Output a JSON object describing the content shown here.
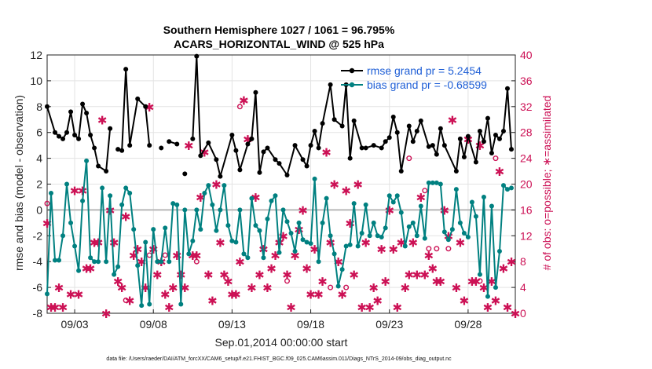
{
  "chart_data": {
    "type": "line",
    "title": "Southern Hemisphere 1027 / 1061 = 96.795%",
    "subtitle": "ACARS_HORIZONTAL_WIND @ 525 hPa",
    "xlabel": "Sep.01,2014 00:00:00 start",
    "ylabel": "rmse and bias (model - observation)",
    "y2label": "# of obs: o=possible; ∗=assimilated",
    "footnote": "data file: /Users/raeder/DAI/ATM_forcXX/CAM6_setup/f.e21.FHIST_BGC.f09_025.CAM6assim.011/Diags_NTrS_2014-09/obs_diag_output.nc",
    "xlim": [
      1.25,
      31.0
    ],
    "ylim": [
      -8,
      12
    ],
    "y2lim": [
      0,
      40
    ],
    "grid": true,
    "legend_position": "top-right",
    "xticks": [
      {
        "value": 3,
        "label": "09/03"
      },
      {
        "value": 8,
        "label": "09/08"
      },
      {
        "value": 13,
        "label": "09/13"
      },
      {
        "value": 18,
        "label": "09/18"
      },
      {
        "value": 23,
        "label": "09/23"
      },
      {
        "value": 28,
        "label": "09/28"
      }
    ],
    "yticks": [
      -8,
      -6,
      -4,
      -2,
      0,
      2,
      4,
      6,
      8,
      10,
      12
    ],
    "y2ticks": [
      0,
      4,
      8,
      12,
      16,
      20,
      24,
      28,
      32,
      36,
      40
    ],
    "colors": {
      "rmse": "#000000",
      "bias": "#008080",
      "obs": "#cc1155",
      "legend_text": "#1f5fd6",
      "zero_line": "#b8b8b8"
    },
    "series": [
      {
        "name": "rmse grand pr = 5.2454",
        "key": "rmse",
        "x": [
          1.25,
          1.75,
          2.0,
          2.25,
          2.5,
          2.75,
          3.0,
          3.25,
          3.5,
          3.75,
          4.0,
          4.25,
          4.5,
          5.0,
          5.25,
          5.5,
          5.75,
          6.0,
          6.25,
          6.5,
          7.0,
          7.5,
          7.75,
          8.0,
          8.5,
          8.75,
          9.0,
          9.5,
          9.75,
          10.0,
          10.25,
          10.5,
          10.75,
          11.0,
          11.5,
          12.0,
          12.25,
          13.0,
          13.25,
          13.5,
          14.0,
          14.25,
          14.5,
          14.75,
          15.0,
          15.25,
          15.75,
          16.0,
          16.5,
          17.0,
          17.5,
          17.75,
          18.0,
          18.25,
          18.5,
          18.75,
          19.25,
          19.5,
          20.0,
          20.25,
          20.5,
          20.75,
          21.25,
          21.5,
          22.0,
          22.5,
          22.75,
          23.0,
          23.25,
          23.5,
          23.75,
          24.25,
          24.5,
          24.75,
          25.0,
          25.5,
          25.75,
          26.0,
          26.25,
          26.5,
          27.25,
          27.5,
          27.75,
          28.0,
          28.5,
          28.75,
          29.0,
          29.25,
          29.5,
          29.75,
          30.0,
          30.25,
          30.5,
          30.75
        ],
        "y": [
          8.0,
          6.0,
          5.7,
          5.5,
          6.0,
          7.6,
          5.8,
          5.5,
          8.2,
          7.5,
          5.8,
          4.8,
          3.4,
          3.0,
          6.3,
          null,
          4.7,
          4.6,
          10.9,
          5.0,
          8.6,
          8.0,
          5.0,
          null,
          4.8,
          null,
          5.3,
          5.1,
          null,
          2.8,
          null,
          5.5,
          11.9,
          4.2,
          5.2,
          3.9,
          2.6,
          5.8,
          4.6,
          3.1,
          5.1,
          5.5,
          9.1,
          2.9,
          4.5,
          4.8,
          3.9,
          3.6,
          2.7,
          5.0,
          3.9,
          3.4,
          5.0,
          6.1,
          4.8,
          6.7,
          9.7,
          7.0,
          6.5,
          9.7,
          4.0,
          6.9,
          4.8,
          4.8,
          5.0,
          4.8,
          5.3,
          5.6,
          7.2,
          6.0,
          3.0,
          6.5,
          5.3,
          6.1,
          6.9,
          4.9,
          5.0,
          4.3,
          6.3,
          5.0,
          3.0,
          5.5,
          4.1,
          5.7,
          3.7,
          6.1,
          5.3,
          7.1,
          4.4,
          5.8,
          5.5,
          6.1,
          9.4,
          4.7
        ]
      },
      {
        "name": "bias grand pr = -0.68599",
        "key": "bias",
        "x": [
          1.25,
          1.5,
          1.75,
          2.0,
          2.25,
          2.5,
          2.75,
          3.0,
          3.25,
          3.5,
          3.75,
          4.0,
          4.25,
          4.5,
          4.75,
          5.0,
          5.25,
          5.5,
          5.75,
          6.0,
          6.25,
          6.5,
          6.75,
          7.0,
          7.25,
          7.5,
          7.75,
          8.0,
          8.25,
          8.5,
          8.75,
          9.0,
          9.25,
          9.5,
          9.75,
          10.0,
          10.25,
          10.5,
          10.75,
          11.0,
          11.25,
          11.5,
          11.75,
          12.0,
          12.25,
          12.5,
          12.75,
          13.0,
          13.25,
          13.5,
          13.75,
          14.0,
          14.25,
          14.5,
          14.75,
          15.0,
          15.25,
          15.5,
          15.75,
          16.0,
          16.25,
          16.5,
          16.75,
          17.0,
          17.25,
          17.5,
          17.75,
          18.0,
          18.25,
          18.5,
          18.75,
          19.0,
          19.25,
          19.5,
          19.75,
          20.0,
          20.25,
          20.5,
          20.75,
          21.0,
          21.25,
          21.5,
          21.75,
          22.0,
          22.25,
          22.5,
          22.75,
          23.0,
          23.25,
          23.5,
          23.75,
          24.0,
          24.25,
          24.5,
          24.75,
          25.0,
          25.25,
          25.5,
          25.75,
          26.0,
          26.25,
          26.5,
          26.75,
          27.0,
          27.25,
          27.5,
          27.75,
          28.0,
          28.25,
          28.5,
          28.75,
          29.0,
          29.25,
          29.5,
          29.75,
          30.0,
          30.25,
          30.5,
          30.75
        ],
        "y": [
          -6.5,
          1.3,
          -3.9,
          -3.9,
          -2.0,
          2.0,
          -1.0,
          -2.8,
          -4.7,
          0.7,
          3.8,
          -3.7,
          -4.0,
          -4.0,
          1.7,
          -4.0,
          1.1,
          -5.0,
          -4.4,
          0.4,
          1.7,
          1.3,
          -1.5,
          -4.3,
          -7.4,
          -2.5,
          -7.3,
          -1.5,
          -4.0,
          -4.0,
          -1.4,
          -4.0,
          0.5,
          0.4,
          -7.3,
          0.0,
          -3.4,
          -2.4,
          0.0,
          -1.5,
          1.3,
          1.9,
          0.4,
          -1.6,
          0.0,
          1.9,
          -1.2,
          -2.4,
          -2.5,
          0.0,
          -3.4,
          -3.7,
          0.9,
          -1.2,
          -1.6,
          -3.7,
          -0.7,
          0.7,
          1.1,
          -3.3,
          0.0,
          -0.9,
          -1.8,
          -3.2,
          -1.0,
          -2.3,
          -2.5,
          -2.6,
          2.4,
          -4.0,
          -1.0,
          0.9,
          -2.0,
          -3.4,
          -5.9,
          -4.6,
          -2.8,
          -2.7,
          0.5,
          -2.8,
          -1.8,
          0.4,
          -2.0,
          -1.0,
          -2.0,
          -2.1,
          -1.4,
          1.1,
          0.6,
          1.1,
          -0.2,
          -2.8,
          -1.3,
          -1.0,
          -2.0,
          0.3,
          -2.2,
          2.1,
          2.1,
          2.1,
          2.0,
          -1.7,
          -2.3,
          -1.5,
          1.6,
          -1.0,
          -1.8,
          -2.1,
          0.6,
          -0.5,
          -5.0,
          1.0,
          -6.7,
          0.3,
          -6.0,
          -3.2,
          1.9,
          1.6,
          1.7
        ]
      }
    ],
    "obs_assimilated": {
      "name": "assimilated",
      "x": [
        1.25,
        1.5,
        1.75,
        2.0,
        2.25,
        2.75,
        3.0,
        3.25,
        3.5,
        3.75,
        4.0,
        4.25,
        4.5,
        4.75,
        5.0,
        5.25,
        5.5,
        5.75,
        6.0,
        6.25,
        6.5,
        6.75,
        7.0,
        7.25,
        7.5,
        7.75,
        8.0,
        8.25,
        8.5,
        8.75,
        9.0,
        9.25,
        9.5,
        9.75,
        10.0,
        10.25,
        10.5,
        10.75,
        11.0,
        11.25,
        11.5,
        11.75,
        12.0,
        12.25,
        12.5,
        12.75,
        13.0,
        13.25,
        13.5,
        13.75,
        14.0,
        14.25,
        14.5,
        14.75,
        15.0,
        15.25,
        15.5,
        15.75,
        16.0,
        16.25,
        16.5,
        16.75,
        17.0,
        17.25,
        17.5,
        17.75,
        18.0,
        18.25,
        18.5,
        18.75,
        19.0,
        19.25,
        19.5,
        19.75,
        20.0,
        20.25,
        20.5,
        20.75,
        21.0,
        21.25,
        21.5,
        21.75,
        22.0,
        22.25,
        22.5,
        22.75,
        23.0,
        23.25,
        23.5,
        23.75,
        24.0,
        24.25,
        24.5,
        24.75,
        25.0,
        25.25,
        25.5,
        25.75,
        26.0,
        26.25,
        26.5,
        26.75,
        27.0,
        27.25,
        27.5,
        27.75,
        28.0,
        28.25,
        28.5,
        28.75,
        29.0,
        29.25,
        29.5,
        29.75,
        30.0,
        30.25,
        30.5,
        30.75,
        31.0
      ],
      "y": [
        14,
        1,
        1,
        4,
        1,
        3,
        19,
        3,
        19,
        7,
        7,
        11,
        11,
        30,
        0,
        16,
        11,
        5,
        4,
        15,
        2,
        9,
        10,
        8,
        4,
        32,
        10,
        6,
        8,
        3,
        1,
        4,
        9,
        6,
        4,
        26,
        9,
        9,
        18,
        25,
        6,
        2,
        20,
        11,
        6,
        5,
        3,
        3,
        8,
        33,
        27,
        4,
        18,
        6,
        10,
        4,
        7,
        9,
        11,
        12,
        6,
        1,
        9,
        13,
        16,
        7,
        3,
        10,
        3,
        5,
        25,
        11,
        20,
        8,
        3,
        19,
        14,
        6,
        20,
        1,
        11,
        1,
        4,
        2,
        10,
        5,
        16,
        10,
        1,
        11,
        4,
        6,
        11,
        6,
        18,
        6,
        9,
        7,
        5,
        5,
        16,
        12,
        30,
        4,
        11,
        2,
        27,
        5,
        5,
        26,
        4,
        1,
        5,
        2,
        22,
        7,
        1,
        8,
        0
      ]
    },
    "obs_possible": {
      "name": "possible",
      "x": [
        1.25,
        6.25,
        7.75,
        8.75,
        10.75,
        13.5,
        16.5,
        19.25,
        20.25,
        24.25,
        25.25,
        25.5,
        26.0,
        26.75,
        28.75,
        29.75
      ],
      "y": [
        17,
        2,
        9,
        9,
        8,
        32,
        5,
        4,
        4,
        24,
        19,
        10,
        10,
        10,
        5,
        24
      ]
    }
  }
}
